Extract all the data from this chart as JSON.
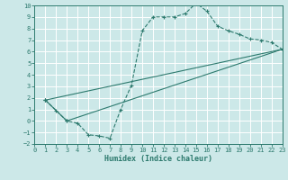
{
  "xlabel": "Humidex (Indice chaleur)",
  "bg_color": "#cce8e8",
  "grid_color": "#ffffff",
  "line_color": "#2d7a6e",
  "xlim": [
    0,
    23
  ],
  "ylim": [
    -2,
    10
  ],
  "xticks": [
    0,
    1,
    2,
    3,
    4,
    5,
    6,
    7,
    8,
    9,
    10,
    11,
    12,
    13,
    14,
    15,
    16,
    17,
    18,
    19,
    20,
    21,
    22,
    23
  ],
  "yticks": [
    -2,
    -1,
    0,
    1,
    2,
    3,
    4,
    5,
    6,
    7,
    8,
    9,
    10
  ],
  "line1_x": [
    1,
    2,
    3,
    4,
    5,
    6,
    7,
    8,
    9,
    10,
    11,
    12,
    13,
    14,
    15,
    16,
    17,
    18,
    19,
    20,
    21,
    22,
    23
  ],
  "line1_y": [
    1.8,
    0.9,
    0.0,
    -0.2,
    -1.2,
    -1.3,
    -1.5,
    1.0,
    3.1,
    7.8,
    9.0,
    9.0,
    9.0,
    9.3,
    10.2,
    9.5,
    8.2,
    7.8,
    7.5,
    7.1,
    7.0,
    6.8,
    6.2
  ],
  "line2_x": [
    1,
    23
  ],
  "line2_y": [
    1.8,
    6.2
  ],
  "line3_x": [
    1,
    3,
    23
  ],
  "line3_y": [
    1.8,
    0.0,
    6.2
  ]
}
